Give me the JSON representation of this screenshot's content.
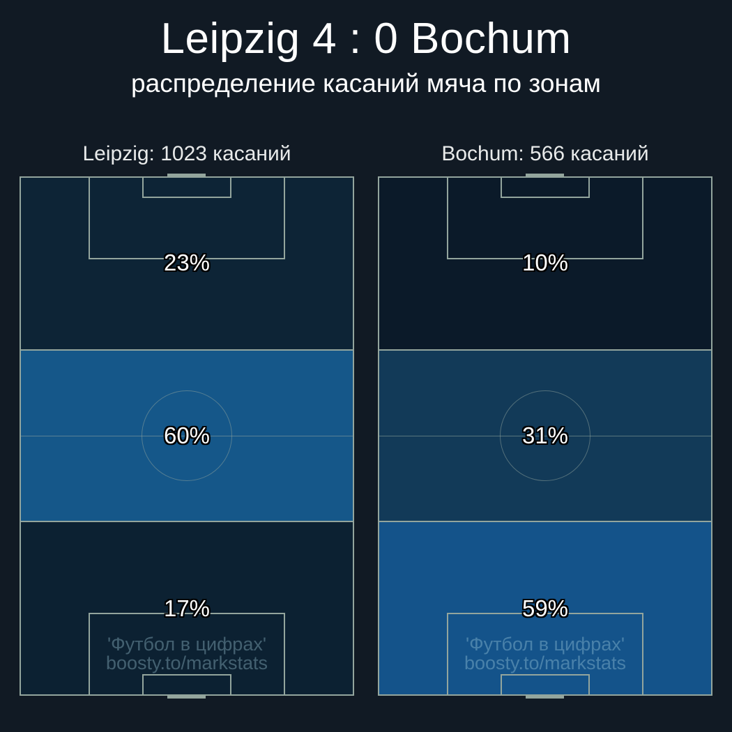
{
  "title": "Leipzig 4 : 0 Bochum",
  "subtitle": "распределение касаний мяча по зонам",
  "watermark": {
    "line1": "'Футбол в цифрах'",
    "line2": "boosty.to/markstats"
  },
  "colors": {
    "background": "#111a24",
    "pitch_line": "#93a59d",
    "title_text": "#ffffff",
    "header_text": "#e8eaea",
    "percent_text": "#ffffff",
    "watermark_text": "rgba(173,216,230,0.35)"
  },
  "pitches": [
    {
      "team": "Leipzig",
      "header": "Leipzig: 1023 касаний",
      "touches": 1023,
      "zones": [
        {
          "name": "final-third",
          "label": "23%",
          "value": 23,
          "color": "#0d2436"
        },
        {
          "name": "middle-third",
          "label": "60%",
          "value": 60,
          "color": "#155789"
        },
        {
          "name": "defensive-third",
          "label": "17%",
          "value": 17,
          "color": "#0c2132"
        }
      ]
    },
    {
      "team": "Bochum",
      "header": "Bochum: 566 касаний",
      "touches": 566,
      "zones": [
        {
          "name": "final-third",
          "label": "10%",
          "value": 10,
          "color": "#0b1a29"
        },
        {
          "name": "middle-third",
          "label": "31%",
          "value": 31,
          "color": "#123a58"
        },
        {
          "name": "defensive-third",
          "label": "59%",
          "value": 59,
          "color": "#14538a"
        }
      ]
    }
  ],
  "chart_data": {
    "type": "heatmap",
    "title": "Leipzig 4 : 0 Bochum",
    "subtitle": "распределение касаний мяча по зонам",
    "categories": [
      "final third (top)",
      "middle third",
      "defensive third (bottom)"
    ],
    "unit": "%",
    "series": [
      {
        "name": "Leipzig",
        "touches_total": 1023,
        "values": [
          23,
          60,
          17
        ]
      },
      {
        "name": "Bochum",
        "touches_total": 566,
        "values": [
          10,
          31,
          59
        ]
      }
    ],
    "colorscale": {
      "low_value_color": "#0b1a29",
      "high_value_color": "#155789"
    },
    "legend_position": "none",
    "grid": "off"
  }
}
